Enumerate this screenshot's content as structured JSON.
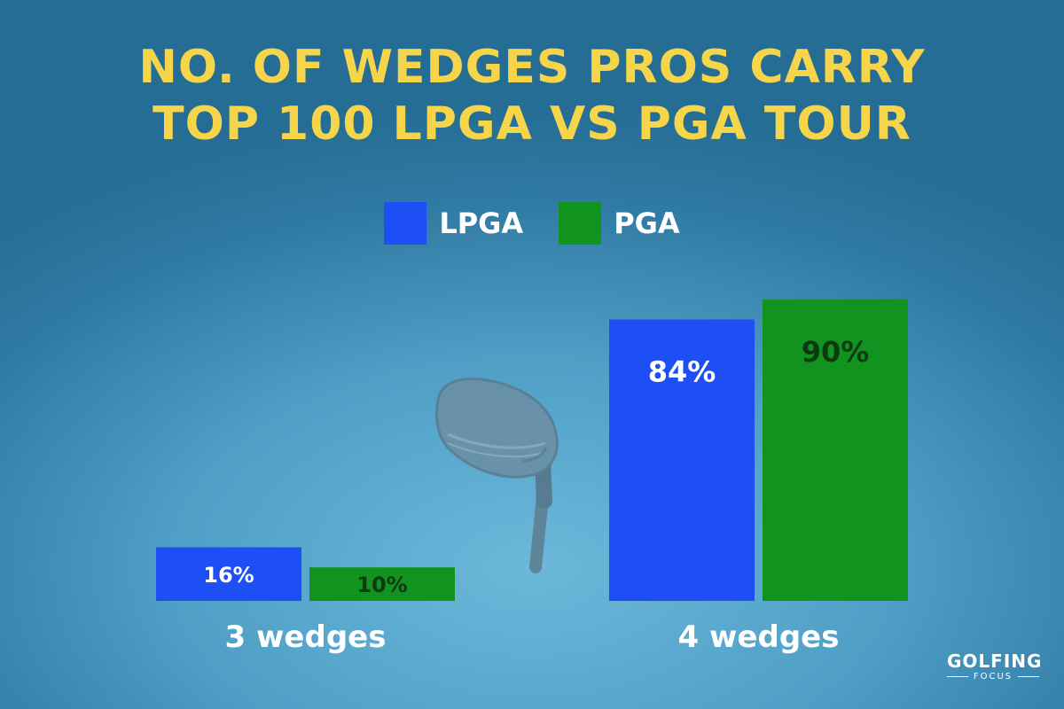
{
  "title_lines": [
    "NO. OF WEDGES PROS CARRY",
    "TOP 100 LPGA VS PGA TOUR"
  ],
  "colors": {
    "title": "#f7d54a",
    "lpga": "#1d4ff5",
    "pga": "#12921f",
    "pga_label": "#0c3b12",
    "lpga_label": "#ffffff"
  },
  "brand": {
    "name": "GOLFING",
    "sub": "FOCUS"
  },
  "chart_data": {
    "type": "bar",
    "title": "NO. OF WEDGES PROS CARRY TOP 100 LPGA VS PGA TOUR",
    "categories": [
      "3 wedges",
      "4 wedges"
    ],
    "series": [
      {
        "name": "LPGA",
        "values": [
          16,
          84
        ],
        "labels": [
          "16%",
          "84%"
        ]
      },
      {
        "name": "PGA",
        "values": [
          10,
          90
        ],
        "labels": [
          "10%",
          "90%"
        ]
      }
    ],
    "unit": "%",
    "ylim": [
      0,
      100
    ],
    "legend": "top-center",
    "grid": false
  }
}
